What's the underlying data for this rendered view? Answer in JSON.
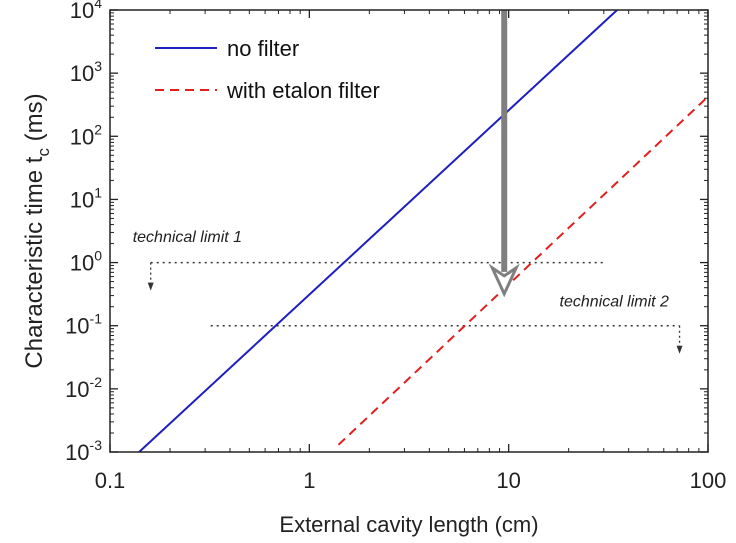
{
  "chart_data": {
    "type": "line",
    "xlabel": "External cavity length (cm)",
    "ylabel_main": "Characteristic time t",
    "ylabel_sub": "c",
    "ylabel_unit": " (ms)",
    "x_scale": "log",
    "y_scale": "log",
    "xlim": [
      0.1,
      100
    ],
    "ylim": [
      0.001,
      10000
    ],
    "x_ticks": [
      {
        "value": 0.1,
        "label": "0.1"
      },
      {
        "value": 1,
        "label": "1"
      },
      {
        "value": 10,
        "label": "10"
      },
      {
        "value": 100,
        "label": "100"
      }
    ],
    "y_ticks": [
      {
        "value": 0.001,
        "base": "10",
        "exp": "-3"
      },
      {
        "value": 0.01,
        "base": "10",
        "exp": "-2"
      },
      {
        "value": 0.1,
        "base": "10",
        "exp": "-1"
      },
      {
        "value": 1,
        "base": "10",
        "exp": "0"
      },
      {
        "value": 10,
        "base": "10",
        "exp": "1"
      },
      {
        "value": 100,
        "base": "10",
        "exp": "2"
      },
      {
        "value": 1000,
        "base": "10",
        "exp": "3"
      },
      {
        "value": 10000,
        "base": "10",
        "exp": "4"
      }
    ],
    "legend_position": "top-left",
    "series": [
      {
        "name": "no filter",
        "color": "#1f1fbf",
        "dash": "solid",
        "x": [
          0.14,
          35
        ],
        "y": [
          0.001,
          10000
        ]
      },
      {
        "name": "with etalon filter",
        "color": "#e02020",
        "dash": "dashed",
        "x": [
          1.4,
          98
        ],
        "y": [
          0.0013,
          400
        ]
      }
    ],
    "annotations": [
      {
        "text": "technical limit 1",
        "y": 1,
        "x_range": [
          0.16,
          30
        ],
        "label_x": 0.13,
        "label_y": 2.1,
        "arrow_x": 0.16
      },
      {
        "text": "technical limit 2",
        "y": 0.1,
        "x_range": [
          0.32,
          72
        ],
        "label_x": 18,
        "label_y": 0.2,
        "arrow_x": 72
      }
    ],
    "big_arrow": {
      "x": 9.5,
      "y_from": 10000,
      "y_to": 0.32,
      "color": "#7f7f7f"
    }
  }
}
